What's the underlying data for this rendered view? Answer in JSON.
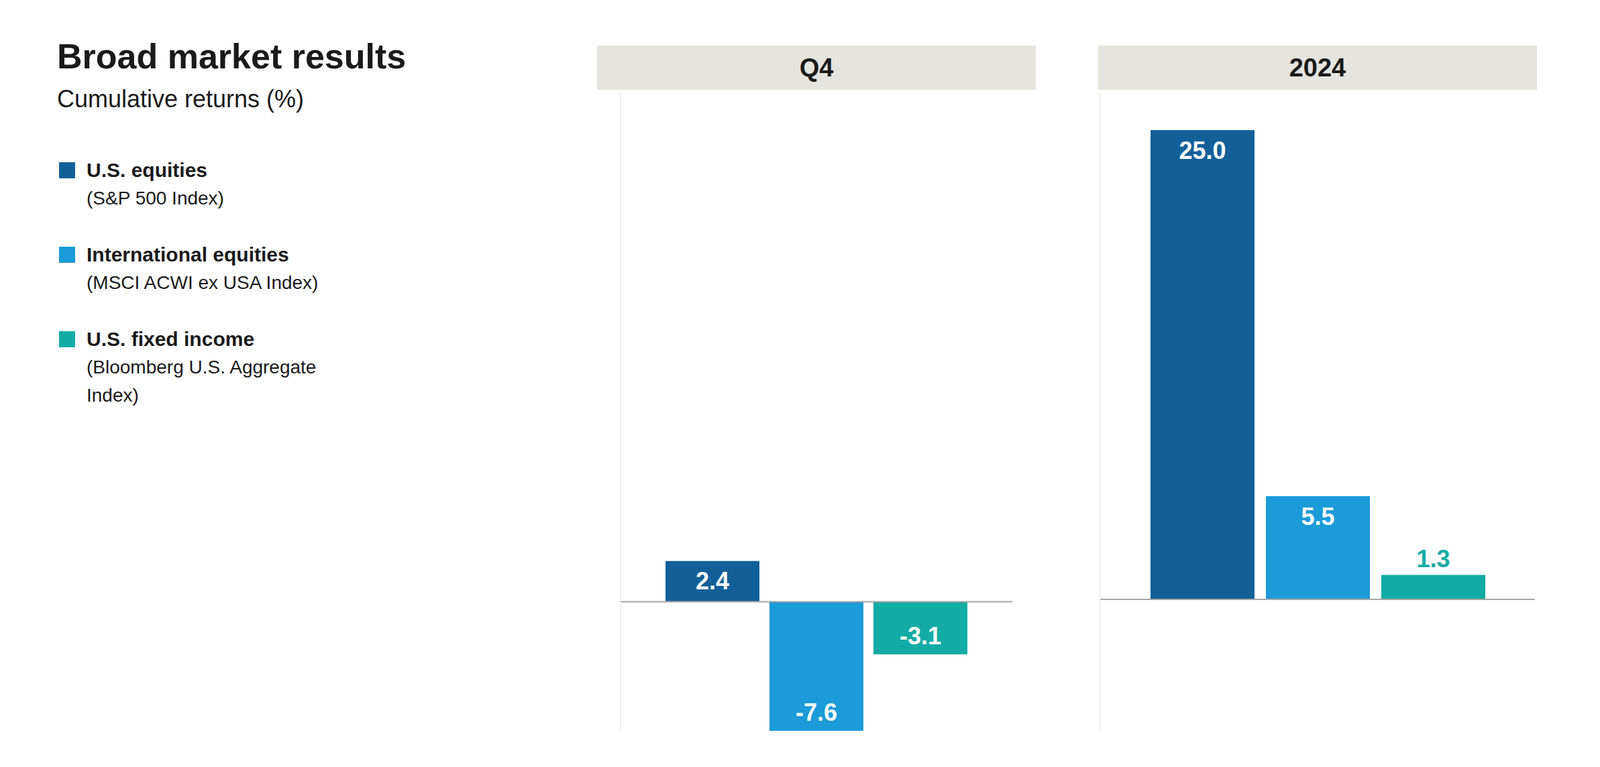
{
  "chart_data": {
    "type": "bar",
    "title": "Broad market results",
    "subtitle": "Cumulative returns (%)",
    "legend": "left",
    "data_labels": true,
    "tick_labels": "x",
    "grid": true,
    "series": [
      {
        "name": "U.S. equities",
        "note": "(S&P 500 Index)",
        "color": "#136099",
        "values": [
          2.4,
          25.0
        ],
        "value_labels": [
          "2.4",
          "25.0"
        ]
      },
      {
        "name": "International equities",
        "note": "(MSCI ACWI ex USA Index)",
        "color": "#1b9bd7",
        "values": [
          -7.6,
          5.5
        ],
        "value_labels": [
          "-7.6",
          "5.5"
        ]
      },
      {
        "name": "U.S. fixed income",
        "note": "(Bloomberg U.S. Aggregate Index)",
        "color": "#13aca5",
        "values": [
          -3.1,
          1.3
        ],
        "value_labels": [
          "-3.1",
          "1.3"
        ]
      }
    ],
    "panels": [
      {
        "categories": [
          "Q4"
        ],
        "ylim": [
          -7.6,
          30
        ],
        "yticks": [
          0
        ]
      },
      {
        "categories": [
          "2024"
        ],
        "ylim": [
          -7,
          27
        ],
        "yticks": [
          0
        ]
      }
    ]
  }
}
